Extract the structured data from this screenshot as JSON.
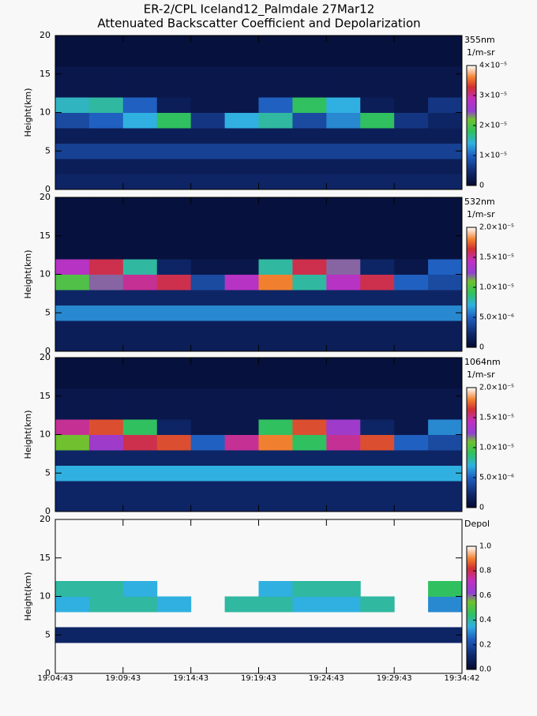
{
  "header": {
    "title": "ER-2/CPL Iceland12_Palmdale 27Mar12",
    "subtitle": "Attenuated Backscatter Coefficient and Depolarization"
  },
  "chart_data": [
    {
      "type": "heatmap",
      "label": "355nm",
      "units": "1/m-sr",
      "ylabel": "Height(km)",
      "ylim": [
        0,
        20
      ],
      "yticks": [
        0,
        5,
        10,
        15,
        20
      ],
      "clim": [
        0,
        4e-05
      ],
      "cticks": [
        0,
        {
          "value": 1e-05,
          "label": "1×10⁻⁵"
        },
        {
          "value": 2e-05,
          "label": "2×10⁻⁵"
        },
        {
          "value": 3e-05,
          "label": "3×10⁻⁵"
        },
        {
          "value": 4e-05,
          "label": "4×10⁻⁵"
        }
      ],
      "values": [
        [
          4e-06,
          4e-06,
          4e-06,
          4e-06,
          4e-06,
          4e-06,
          4e-06,
          4e-06,
          4e-06,
          4e-06,
          4e-06,
          4e-06
        ],
        [
          3e-06,
          3e-06,
          3e-06,
          3e-06,
          3e-06,
          3e-06,
          3e-06,
          3e-06,
          3e-06,
          3e-06,
          3e-06,
          3e-06
        ],
        [
          7e-06,
          7e-06,
          7e-06,
          7e-06,
          7e-06,
          7e-06,
          7e-06,
          7e-06,
          7e-06,
          7e-06,
          7e-06,
          7e-06
        ],
        [
          3e-06,
          3e-06,
          3e-06,
          3e-06,
          3e-06,
          3e-06,
          3e-06,
          3e-06,
          3e-06,
          3e-06,
          3e-06,
          3e-06
        ],
        [
          8e-06,
          1e-05,
          1.4e-05,
          1.8e-05,
          6e-06,
          1.4e-05,
          1.6e-05,
          8e-06,
          1.2e-05,
          1.8e-05,
          6e-06,
          4e-06
        ],
        [
          1.5e-05,
          1.6e-05,
          1e-05,
          3e-06,
          2e-06,
          2e-06,
          1e-05,
          1.8e-05,
          1.4e-05,
          3e-06,
          2e-06,
          6e-06
        ],
        [
          2e-06,
          2e-06,
          2e-06,
          2e-06,
          2e-06,
          2e-06,
          2e-06,
          2e-06,
          2e-06,
          2e-06,
          2e-06,
          2e-06
        ],
        [
          2e-06,
          2e-06,
          2e-06,
          2e-06,
          2e-06,
          2e-06,
          2e-06,
          2e-06,
          2e-06,
          2e-06,
          2e-06,
          2e-06
        ],
        [
          1e-06,
          1e-06,
          1e-06,
          1e-06,
          1e-06,
          1e-06,
          1e-06,
          1e-06,
          1e-06,
          1e-06,
          1e-06,
          1e-06
        ],
        [
          1e-06,
          1e-06,
          1e-06,
          1e-06,
          1e-06,
          1e-06,
          1e-06,
          1e-06,
          1e-06,
          1e-06,
          1e-06,
          1e-06
        ]
      ]
    },
    {
      "type": "heatmap",
      "label": "532nm",
      "units": "1/m-sr",
      "ylabel": "Height(km)",
      "ylim": [
        0,
        20
      ],
      "yticks": [
        0,
        5,
        10,
        15,
        20
      ],
      "clim": [
        0,
        2e-05
      ],
      "cticks": [
        0,
        {
          "value": 5e-06,
          "label": "5.0×10⁻⁶"
        },
        {
          "value": 1e-05,
          "label": "1.0×10⁻⁵"
        },
        {
          "value": 1.5e-05,
          "label": "1.5×10⁻⁵"
        },
        {
          "value": 2e-05,
          "label": "2.0×10⁻⁵"
        }
      ],
      "values": [
        [
          1.5e-06,
          1.5e-06,
          1.5e-06,
          1.5e-06,
          1.5e-06,
          1.5e-06,
          1.5e-06,
          1.5e-06,
          1.5e-06,
          1.5e-06,
          1.5e-06,
          1.5e-06
        ],
        [
          1.5e-06,
          1.5e-06,
          1.5e-06,
          1.5e-06,
          1.5e-06,
          1.5e-06,
          1.5e-06,
          1.5e-06,
          1.5e-06,
          1.5e-06,
          1.5e-06,
          1.5e-06
        ],
        [
          6e-06,
          6e-06,
          6e-06,
          6e-06,
          6e-06,
          6e-06,
          6e-06,
          6e-06,
          6e-06,
          6e-06,
          6e-06,
          6e-06
        ],
        [
          2e-06,
          2e-06,
          2e-06,
          2e-06,
          2e-06,
          2e-06,
          2e-06,
          2e-06,
          2e-06,
          2e-06,
          2e-06,
          2e-06
        ],
        [
          1e-05,
          1.2e-05,
          1.5e-05,
          1.6e-05,
          4e-06,
          1.4e-05,
          1.8e-05,
          8e-06,
          1.4e-05,
          1.6e-05,
          5e-06,
          4e-06
        ],
        [
          1.4e-05,
          1.6e-05,
          8e-06,
          2e-06,
          1e-06,
          1e-06,
          8e-06,
          1.6e-05,
          1.2e-05,
          2e-06,
          1e-06,
          5e-06
        ],
        [
          5e-07,
          5e-07,
          5e-07,
          5e-07,
          5e-07,
          5e-07,
          5e-07,
          5e-07,
          5e-07,
          5e-07,
          5e-07,
          5e-07
        ],
        [
          5e-07,
          5e-07,
          5e-07,
          5e-07,
          5e-07,
          5e-07,
          5e-07,
          5e-07,
          5e-07,
          5e-07,
          5e-07,
          5e-07
        ],
        [
          5e-07,
          5e-07,
          5e-07,
          5e-07,
          5e-07,
          5e-07,
          5e-07,
          5e-07,
          5e-07,
          5e-07,
          5e-07,
          5e-07
        ],
        [
          5e-07,
          5e-07,
          5e-07,
          5e-07,
          5e-07,
          5e-07,
          5e-07,
          5e-07,
          5e-07,
          5e-07,
          5e-07,
          5e-07
        ]
      ]
    },
    {
      "type": "heatmap",
      "label": "1064nm",
      "units": "1/m-sr",
      "ylabel": "Height(km)",
      "ylim": [
        0,
        20
      ],
      "yticks": [
        0,
        5,
        10,
        15,
        20
      ],
      "clim": [
        0,
        2e-05
      ],
      "cticks": [
        0,
        {
          "value": 5e-06,
          "label": "5.0×10⁻⁶"
        },
        {
          "value": 1e-05,
          "label": "1.0×10⁻⁵"
        },
        {
          "value": 1.5e-05,
          "label": "1.5×10⁻⁵"
        },
        {
          "value": 2e-05,
          "label": "2.0×10⁻⁵"
        }
      ],
      "values": [
        [
          2e-06,
          2e-06,
          2e-06,
          2e-06,
          2e-06,
          2e-06,
          2e-06,
          2e-06,
          2e-06,
          2e-06,
          2e-06,
          2e-06
        ],
        [
          2e-06,
          2e-06,
          2e-06,
          2e-06,
          2e-06,
          2e-06,
          2e-06,
          2e-06,
          2e-06,
          2e-06,
          2e-06,
          2e-06
        ],
        [
          7e-06,
          7e-06,
          7e-06,
          7e-06,
          7e-06,
          7e-06,
          7e-06,
          7e-06,
          7e-06,
          7e-06,
          7e-06,
          7e-06
        ],
        [
          2e-06,
          2e-06,
          2e-06,
          2e-06,
          2e-06,
          2e-06,
          2e-06,
          2e-06,
          2e-06,
          2e-06,
          2e-06,
          2e-06
        ],
        [
          1.1e-05,
          1.3e-05,
          1.6e-05,
          1.7e-05,
          5e-06,
          1.5e-05,
          1.8e-05,
          9e-06,
          1.5e-05,
          1.7e-05,
          5e-06,
          4e-06
        ],
        [
          1.5e-05,
          1.7e-05,
          9e-06,
          2e-06,
          1e-06,
          1e-06,
          9e-06,
          1.7e-05,
          1.3e-05,
          2e-06,
          1e-06,
          6e-06
        ],
        [
          1e-06,
          1e-06,
          1e-06,
          1e-06,
          1e-06,
          1e-06,
          1e-06,
          1e-06,
          1e-06,
          1e-06,
          1e-06,
          1e-06
        ],
        [
          1e-06,
          1e-06,
          1e-06,
          1e-06,
          1e-06,
          1e-06,
          1e-06,
          1e-06,
          1e-06,
          1e-06,
          1e-06,
          1e-06
        ],
        [
          5e-07,
          5e-07,
          5e-07,
          5e-07,
          5e-07,
          5e-07,
          5e-07,
          5e-07,
          5e-07,
          5e-07,
          5e-07,
          5e-07
        ],
        [
          5e-07,
          5e-07,
          5e-07,
          5e-07,
          5e-07,
          5e-07,
          5e-07,
          5e-07,
          5e-07,
          5e-07,
          5e-07,
          5e-07
        ]
      ]
    },
    {
      "type": "heatmap",
      "label": "Depol",
      "ylabel": "Height(km)",
      "ylim": [
        0,
        20
      ],
      "yticks": [
        0,
        5,
        10,
        15,
        20
      ],
      "clim": [
        0,
        1
      ],
      "cticks": [
        {
          "value": 0,
          "label": "0.0"
        },
        0.2,
        0.4,
        0.6,
        0.8,
        {
          "value": 1,
          "label": "1.0"
        }
      ],
      "xticks": [
        "19:04:43",
        "19:09:43",
        "19:14:43",
        "19:19:43",
        "19:24:43",
        "19:29:43",
        "19:34:42"
      ],
      "values": [
        [
          null,
          null,
          null,
          null,
          null,
          null,
          null,
          null,
          null,
          null,
          null,
          null
        ],
        [
          null,
          null,
          null,
          null,
          null,
          null,
          null,
          null,
          null,
          null,
          null,
          null
        ],
        [
          0.1,
          0.1,
          0.1,
          0.1,
          0.1,
          0.1,
          0.1,
          0.1,
          0.1,
          0.1,
          0.1,
          0.1
        ],
        [
          null,
          null,
          null,
          null,
          null,
          null,
          null,
          null,
          null,
          null,
          null,
          null
        ],
        [
          0.35,
          0.4,
          0.4,
          0.35,
          null,
          0.4,
          0.4,
          0.35,
          0.35,
          0.4,
          null,
          0.3
        ],
        [
          0.4,
          0.4,
          0.35,
          null,
          null,
          null,
          0.35,
          0.4,
          0.4,
          null,
          null,
          0.45
        ],
        [
          null,
          null,
          null,
          null,
          null,
          null,
          null,
          null,
          null,
          null,
          null,
          null
        ],
        [
          null,
          null,
          null,
          null,
          null,
          null,
          null,
          null,
          null,
          null,
          null,
          null
        ],
        [
          null,
          null,
          null,
          null,
          null,
          null,
          null,
          null,
          null,
          null,
          null,
          null
        ],
        [
          null,
          null,
          null,
          null,
          null,
          null,
          null,
          null,
          null,
          null,
          null,
          null
        ]
      ]
    }
  ]
}
